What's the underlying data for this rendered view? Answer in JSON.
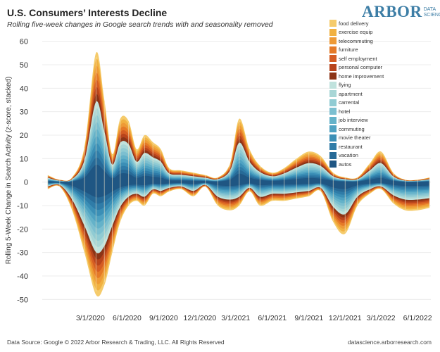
{
  "header": {
    "title": "U.S. Consumers’ Interests Decline",
    "subtitle": "Rolling five-week changes in Google search trends with and seasonality removed"
  },
  "logo": {
    "word": "ARBOR",
    "sub": "DATA SCIENCE"
  },
  "footer": {
    "left": "Data Source: Google © 2022 Arbor Research & Trading, LLC. All Rights Reserved",
    "right": "datascience.arborresearch.com"
  },
  "chart_data": {
    "type": "area",
    "title": "U.S. Consumers’ Interests Decline",
    "subtitle": "Rolling five-week changes in Google search trends with and seasonality removed",
    "ylabel": "Rolling 5-Week Change in Search Activity (z-score, stacked)",
    "xlabel": "",
    "ylim": [
      -52,
      62
    ],
    "yticks": [
      60,
      50,
      40,
      30,
      20,
      10,
      0,
      -10,
      -20,
      -30,
      -40,
      -50
    ],
    "x_tick_labels": [
      "3/1/2020",
      "6/1/2020",
      "9/1/2020",
      "12/1/2020",
      "3/1/2021",
      "6/1/2021",
      "9/1/2021",
      "12/1/2021",
      "3/1/2022",
      "6/1/2022"
    ],
    "x_range": [
      "2019-11-01",
      "2022-07-15"
    ],
    "grid": "horizontal",
    "legend_position": "top-right",
    "x": [
      "2019-11-15",
      "2019-12-15",
      "2020-01-15",
      "2020-02-15",
      "2020-03-15",
      "2020-04-05",
      "2020-04-25",
      "2020-05-15",
      "2020-06-05",
      "2020-06-25",
      "2020-07-15",
      "2020-08-05",
      "2020-08-25",
      "2020-09-15",
      "2020-10-15",
      "2020-11-15",
      "2020-12-15",
      "2021-01-15",
      "2021-02-15",
      "2021-03-10",
      "2021-04-05",
      "2021-05-01",
      "2021-06-01",
      "2021-07-01",
      "2021-08-01",
      "2021-09-01",
      "2021-10-01",
      "2021-11-01",
      "2021-12-01",
      "2022-01-01",
      "2022-02-01",
      "2022-03-01",
      "2022-04-01",
      "2022-05-01",
      "2022-06-01",
      "2022-07-01"
    ],
    "top": [
      3,
      1,
      2,
      15,
      55,
      35,
      12,
      27,
      26,
      14,
      20,
      17,
      14,
      6,
      5,
      4,
      3,
      2,
      8,
      27,
      14,
      7,
      4,
      6,
      10,
      13,
      11,
      4,
      2,
      2,
      8,
      13,
      4,
      1,
      1,
      2
    ],
    "bottom": [
      -3,
      -2,
      -12,
      -30,
      -48,
      -44,
      -30,
      -17,
      -10,
      -8,
      -10,
      -5,
      -6,
      -4,
      -3,
      -6,
      -2,
      -10,
      -12,
      -10,
      -4,
      -10,
      -8,
      -8,
      -7,
      -6,
      -4,
      -17,
      -22,
      -10,
      -5,
      -3,
      -9,
      -12,
      -12,
      -11
    ],
    "series": [
      {
        "name": "food delivery",
        "color": "#f5cb6b"
      },
      {
        "name": "exercise equip",
        "color": "#f1b141"
      },
      {
        "name": "telecommuting",
        "color": "#ee9a36"
      },
      {
        "name": "furniture",
        "color": "#e57a27"
      },
      {
        "name": "self employment",
        "color": "#d55d23"
      },
      {
        "name": "personal computer",
        "color": "#b8441c"
      },
      {
        "name": "home improvement",
        "color": "#8c3416"
      },
      {
        "name": "flying",
        "color": "#c0e2dd"
      },
      {
        "name": "apartment",
        "color": "#a8d6d6"
      },
      {
        "name": "carrental",
        "color": "#90cbd3"
      },
      {
        "name": "hotel",
        "color": "#7cbfd0"
      },
      {
        "name": "job interview",
        "color": "#64b2c9"
      },
      {
        "name": "commuting",
        "color": "#4fa2c2"
      },
      {
        "name": "movie theater",
        "color": "#3b8fb6"
      },
      {
        "name": "restaurant",
        "color": "#2f7ca8"
      },
      {
        "name": "vacation",
        "color": "#276a97"
      },
      {
        "name": "autos",
        "color": "#1f5683"
      }
    ]
  }
}
